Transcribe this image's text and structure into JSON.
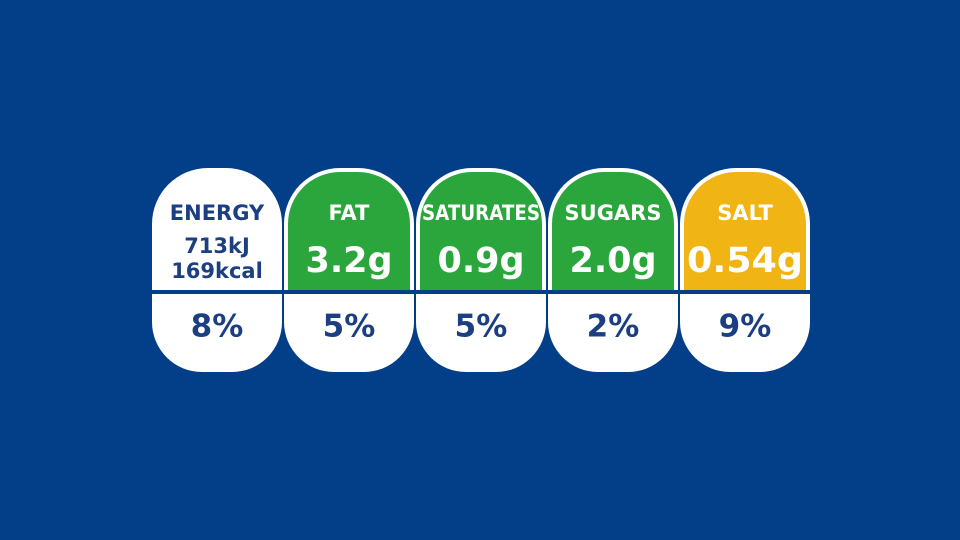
{
  "label": {
    "items": [
      {
        "name": "ENERGY",
        "amounts": [
          "713kJ",
          "169kcal"
        ],
        "percent": "8%",
        "color": "#ffffff"
      },
      {
        "name": "FAT",
        "amounts": [
          "3.2g"
        ],
        "percent": "5%",
        "color": "#2aa63c"
      },
      {
        "name": "SATURATES",
        "amounts": [
          "0.9g"
        ],
        "percent": "5%",
        "color": "#2aa63c"
      },
      {
        "name": "SUGARS",
        "amounts": [
          "2.0g"
        ],
        "percent": "2%",
        "color": "#2aa63c"
      },
      {
        "name": "SALT",
        "amounts": [
          "0.54g"
        ],
        "percent": "9%",
        "color": "#f0b414"
      }
    ]
  }
}
